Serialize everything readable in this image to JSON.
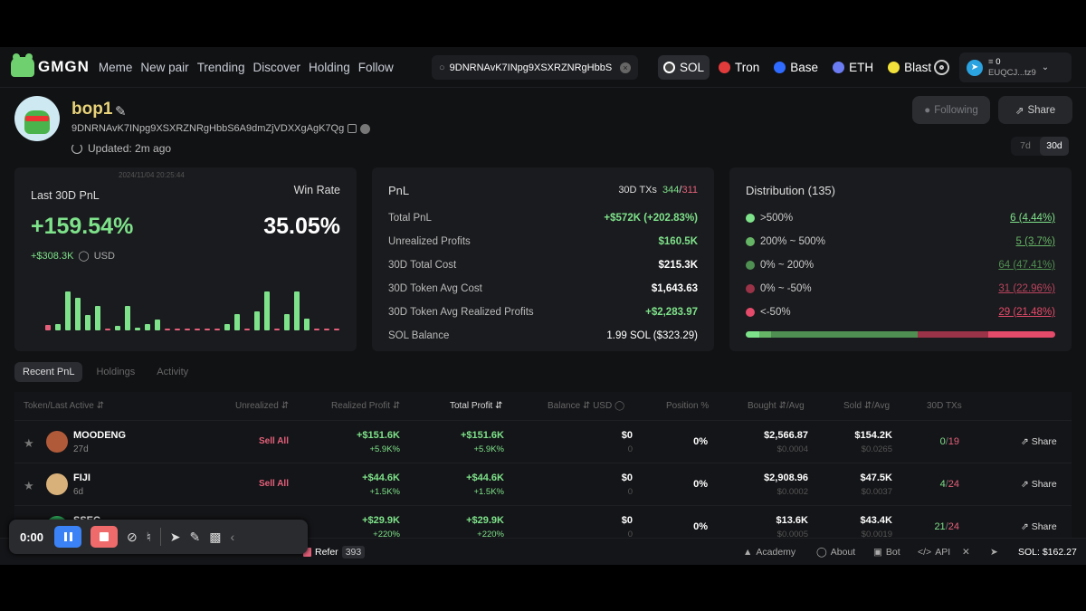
{
  "nav": {
    "brand": "GMGN",
    "links": [
      "Meme",
      "New pair",
      "Trending",
      "Discover",
      "Holding",
      "Follow"
    ],
    "search_value": "9DNRNAvK7INpg9XSXRZNRgHbbS",
    "chains": [
      {
        "label": "SOL",
        "color": "#ffffff"
      },
      {
        "label": "Tron",
        "color": "#e23b3b"
      },
      {
        "label": "Base",
        "color": "#2f6bff"
      },
      {
        "label": "ETH",
        "color": "#6b7cf2"
      },
      {
        "label": "Blast",
        "color": "#f2e13b"
      }
    ],
    "wallet_balance": "0",
    "wallet_addr": "EUQCJ...tz9"
  },
  "profile": {
    "name": "bop1",
    "address": "9DNRNAvK7INpg9XSXRZNRgHbbS6A9dmZjVDXXgAgK7Qg",
    "updated": "Updated: 2m ago",
    "following_label": "Following",
    "share_label": "Share",
    "periods": [
      "7d",
      "30d"
    ]
  },
  "pnl_card": {
    "timestamp": "2024/11/04 20:25:44",
    "title": "Last 30D PnL",
    "winrate_title": "Win Rate",
    "pnl_pct": "+159.54%",
    "winrate": "35.05%",
    "pnl_usd": "+$308.3K",
    "unit": "USD",
    "bar_values": [
      0.1,
      0.12,
      0.72,
      0.6,
      0.28,
      0.45,
      0.03,
      0.08,
      0.45,
      0.05,
      0.12,
      0.2,
      0.03,
      0.03,
      0.03,
      0.03,
      0.03,
      0.03,
      0.12,
      0.3,
      0.03,
      0.35,
      0.72,
      0.03,
      0.3,
      0.72,
      0.22,
      0.03,
      0.03,
      0.03
    ]
  },
  "pnl_details": {
    "title": "PnL",
    "tx_label": "30D TXs",
    "tx_win": "344",
    "tx_loss": "311",
    "rows": [
      {
        "label": "Total PnL",
        "value": "+$572K (+202.83%)",
        "green": true
      },
      {
        "label": "Unrealized Profits",
        "value": "$160.5K",
        "green": true
      },
      {
        "label": "30D Total Cost",
        "value": "$215.3K",
        "green": false
      },
      {
        "label": "30D Token Avg Cost",
        "value": "$1,643.63",
        "green": false
      },
      {
        "label": "30D Token Avg Realized Profits",
        "value": "+$2,283.97",
        "green": true
      },
      {
        "label": "SOL Balance",
        "value": "1.99 SOL ($323.29)",
        "green": false
      }
    ]
  },
  "distribution": {
    "title": "Distribution (135)",
    "rows": [
      {
        "label": ">500%",
        "value": "6 (4.44%)",
        "color": "#7ee28a"
      },
      {
        "label": "200% ~ 500%",
        "value": "5 (3.7%)",
        "color": "#66b566"
      },
      {
        "label": "0% ~ 200%",
        "value": "64 (47.41%)",
        "color": "#4f8f52"
      },
      {
        "label": "0% ~ -50%",
        "value": "31 (22.96%)",
        "color": "#9b3348"
      },
      {
        "label": "<-50%",
        "value": "29 (21.48%)",
        "color": "#e44a6a"
      }
    ],
    "fractions": [
      0.0444,
      0.037,
      0.4741,
      0.2296,
      0.2148
    ]
  },
  "tabs": [
    "Recent PnL",
    "Holdings",
    "Activity"
  ],
  "table": {
    "headers": [
      "Token/Last Active",
      "Unrealized",
      "Realized Profit",
      "Total Profit",
      "Balance",
      "USD",
      "Position %",
      "Bought",
      "/Avg",
      "Sold",
      "/Avg",
      "30D TXs"
    ],
    "sell_label": "Sell All",
    "share_label": "Share",
    "rows": [
      {
        "name": "MOODENG",
        "age": "27d",
        "sell": true,
        "realized": "+$151.6K",
        "realized_pct": "+5.9K%",
        "total": "+$151.6K",
        "total_pct": "+5.9K%",
        "balance": "$0",
        "balance_sub": "0",
        "position": "0%",
        "bought": "$2,566.87",
        "bought_avg": "$0.0004",
        "sold": "$154.2K",
        "sold_avg": "$0.0265",
        "tx_win": "0",
        "tx_total": "19",
        "avatar": "#b05a3a"
      },
      {
        "name": "FIJI",
        "age": "6d",
        "sell": true,
        "realized": "+$44.6K",
        "realized_pct": "+1.5K%",
        "total": "+$44.6K",
        "total_pct": "+1.5K%",
        "balance": "$0",
        "balance_sub": "0",
        "position": "0%",
        "bought": "$2,908.96",
        "bought_avg": "$0.0002",
        "sold": "$47.5K",
        "sold_avg": "$0.0037",
        "tx_win": "4",
        "tx_total": "24",
        "avatar": "#d8b07a"
      },
      {
        "name": "SSEC",
        "age": "",
        "sell": false,
        "realized": "+$29.9K",
        "realized_pct": "+220%",
        "total": "+$29.9K",
        "total_pct": "+220%",
        "balance": "$0",
        "balance_sub": "0",
        "position": "0%",
        "bought": "$13.6K",
        "bought_avg": "$0.0005",
        "sold": "$43.4K",
        "sold_avg": "$0.0019",
        "tx_win": "21",
        "tx_total": "24",
        "avatar": "#2eaa5a"
      }
    ]
  },
  "footer": {
    "refer_label": "Refer",
    "refer_count": "393",
    "links": [
      "Academy",
      "About",
      "Bot",
      "API"
    ],
    "sol_price": "SOL: $162.27"
  },
  "recorder": {
    "time": "0:00"
  }
}
